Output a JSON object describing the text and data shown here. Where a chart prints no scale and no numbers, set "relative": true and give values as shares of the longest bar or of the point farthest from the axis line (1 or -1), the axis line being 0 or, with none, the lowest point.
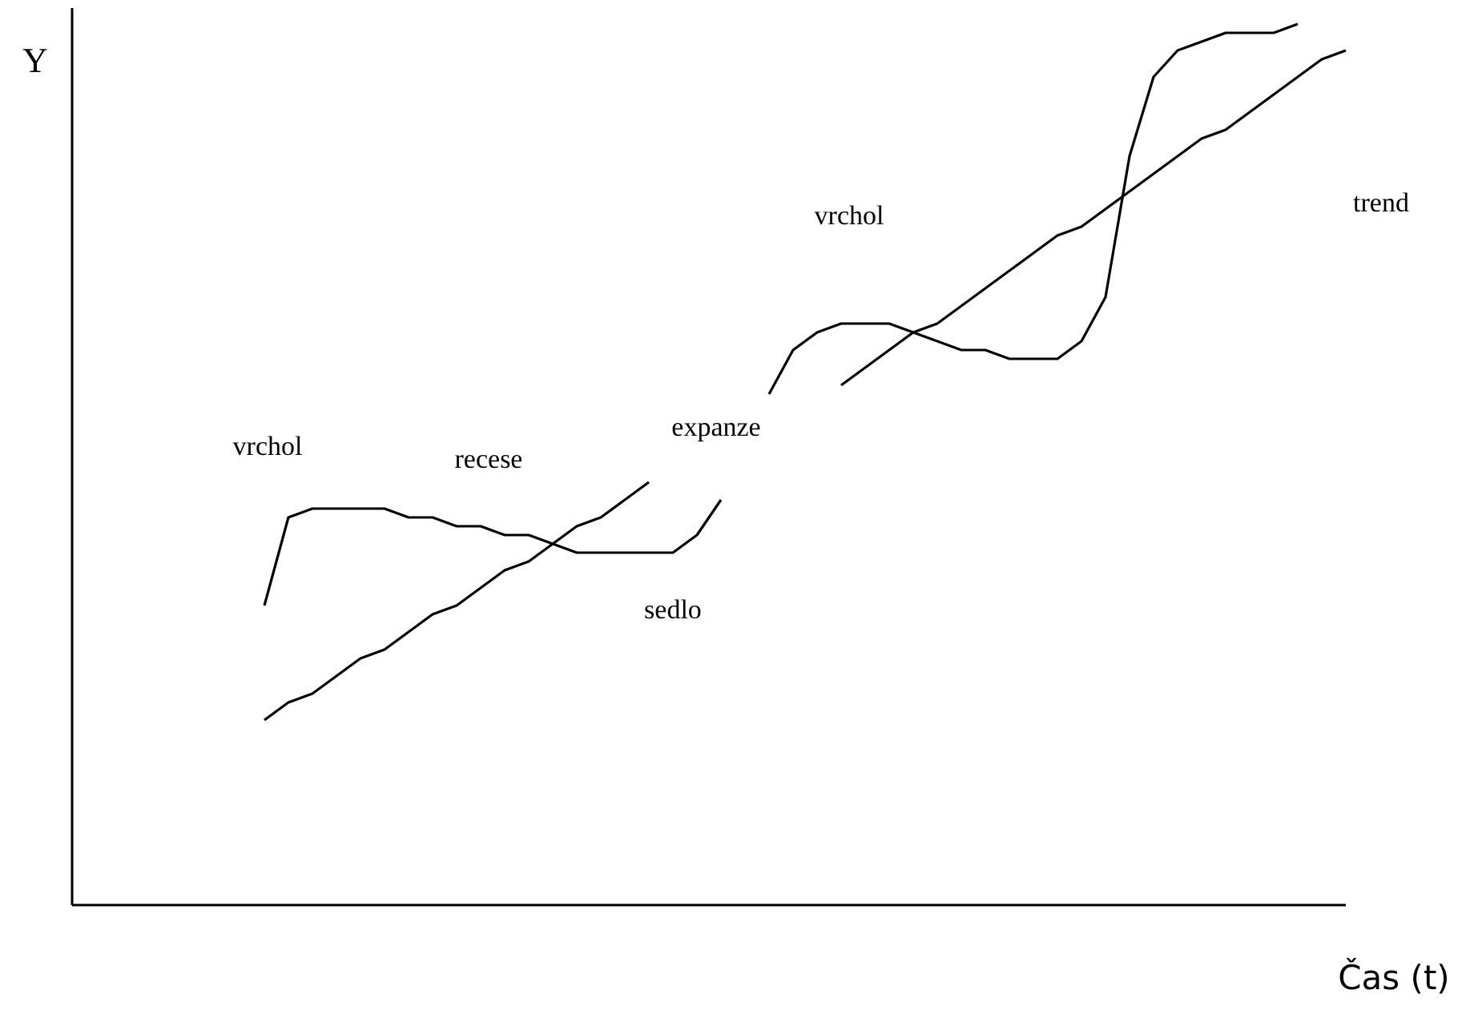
{
  "chart_data": {
    "type": "line",
    "relative": true,
    "marker": "none",
    "line_style": "solid",
    "categories": [
      null,
      null,
      null,
      null,
      null,
      null,
      null,
      null,
      null,
      null,
      null,
      null,
      null,
      null,
      null,
      null,
      null,
      null,
      null,
      null,
      null,
      null,
      null,
      null,
      null,
      null,
      null,
      null,
      null,
      null,
      null,
      null,
      null,
      null,
      null,
      null,
      null,
      null,
      null,
      null,
      null,
      null,
      null,
      null,
      null,
      null,
      null
    ],
    "series": [
      {
        "color": "#000000",
        "values": [
          0.34,
          0.44,
          0.45,
          0.45,
          0.45,
          0.45,
          0.44,
          0.44,
          0.43,
          0.43,
          0.42,
          0.42,
          0.41,
          0.4,
          0.4,
          0.4,
          0.4,
          0.4,
          0.42,
          0.46,
          null,
          null,
          null,
          null,
          null,
          null,
          null,
          null,
          null,
          null,
          null,
          null,
          null,
          null,
          null,
          null,
          null,
          null,
          null,
          null,
          null,
          null,
          null,
          null,
          null,
          null,
          null
        ]
      },
      {
        "color": "#000000",
        "values": [
          null,
          null,
          null,
          null,
          null,
          null,
          null,
          null,
          null,
          null,
          null,
          null,
          null,
          null,
          null,
          null,
          null,
          null,
          null,
          null,
          null,
          0.58,
          0.63,
          0.65,
          0.66,
          0.66,
          0.66,
          0.65,
          0.64,
          0.63,
          0.63,
          0.62,
          0.62,
          0.62,
          0.64,
          0.69,
          0.85,
          0.94,
          0.97,
          0.98,
          0.99,
          0.99,
          0.99,
          1,
          null,
          null,
          null
        ]
      },
      {
        "color": "#000000",
        "values": [
          0.21,
          0.23,
          0.24,
          0.26,
          0.28,
          0.29,
          0.31,
          0.33,
          0.34,
          0.36,
          0.38,
          0.39,
          0.41,
          0.43,
          0.44,
          0.46,
          0.48,
          null,
          null,
          null,
          null,
          null,
          null,
          null,
          null,
          null,
          null,
          null,
          null,
          null,
          null,
          null,
          null,
          null,
          null,
          null,
          null,
          null,
          null,
          null,
          null,
          null,
          null,
          null,
          null,
          null,
          null
        ]
      },
      {
        "color": "#000000",
        "values": [
          null,
          null,
          null,
          null,
          null,
          null,
          null,
          null,
          null,
          null,
          null,
          null,
          null,
          null,
          null,
          null,
          null,
          null,
          null,
          null,
          null,
          null,
          null,
          null,
          0.59,
          0.61,
          0.63,
          0.65,
          0.66,
          0.68,
          0.7,
          0.72,
          0.74,
          0.76,
          0.77,
          0.79,
          0.81,
          0.83,
          0.85,
          0.87,
          0.88,
          0.9,
          0.92,
          0.94,
          0.96,
          0.97,
          null
        ]
      }
    ],
    "annotations": [
      "Y",
      "vrchol",
      "recese",
      "expanze",
      "sedlo",
      "vrchol",
      "trend",
      "Čas (t)"
    ]
  }
}
